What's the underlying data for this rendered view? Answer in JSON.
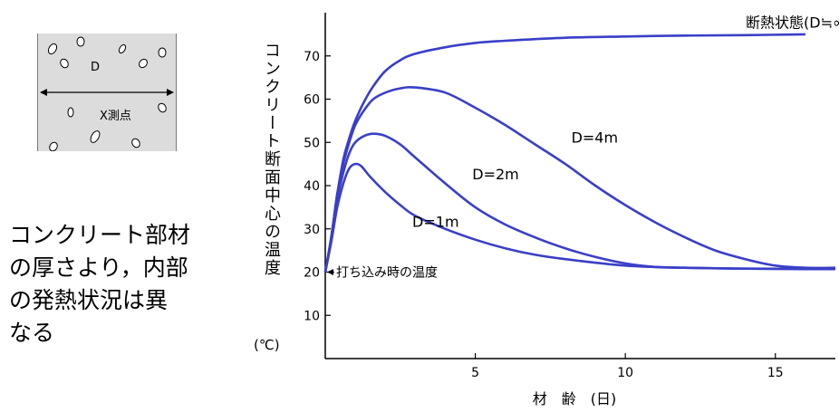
{
  "inset": {
    "diameter_label": "D",
    "point_label": "X測点"
  },
  "side_note": "コンクリート部材\nの厚さより，内部\nの発熱状況は異\nなる",
  "chart_data": {
    "type": "line",
    "xlabel": "材　齢　(日)",
    "ylabel": "コンクリート断面中心の温度",
    "yunit": "(℃)",
    "xlim": [
      0,
      17
    ],
    "ylim": [
      0,
      80
    ],
    "xticks": [
      5,
      10,
      15
    ],
    "yticks": [
      10,
      20,
      30,
      40,
      50,
      60,
      70
    ],
    "annotation": "打ち込み時の温度",
    "annotation_value": 20,
    "line_color": "#3a3fc8",
    "series": [
      {
        "name": "断熱状態(D≒∞)",
        "x": [
          0,
          0.2,
          0.4,
          0.6,
          0.8,
          1.0,
          1.3,
          1.6,
          2.0,
          2.5,
          3.0,
          4.0,
          5.0,
          6.0,
          8.0,
          10.0,
          12.0,
          14.0,
          16.0
        ],
        "y": [
          20,
          28,
          38,
          46,
          51,
          55,
          59.5,
          63,
          66.5,
          69,
          70.5,
          72,
          73,
          73.5,
          74.2,
          74.5,
          74.7,
          74.8,
          75
        ]
      },
      {
        "name": "D=4m",
        "x": [
          0,
          0.2,
          0.4,
          0.6,
          0.8,
          1.0,
          1.3,
          1.6,
          2.0,
          2.5,
          3.0,
          4.0,
          5.0,
          6.0,
          7.0,
          8.0,
          9.0,
          10.0,
          11.0,
          12.0,
          13.0,
          14.0,
          15.0,
          16.0,
          17.0
        ],
        "y": [
          20,
          28,
          38,
          45,
          50,
          54,
          57.5,
          60,
          61.5,
          62.5,
          62.7,
          61.5,
          58,
          54,
          49.5,
          45,
          40,
          35.5,
          31.5,
          28,
          25,
          23,
          21.5,
          21,
          21
        ]
      },
      {
        "name": "D=2m",
        "x": [
          0,
          0.2,
          0.4,
          0.6,
          0.8,
          1.0,
          1.3,
          1.6,
          2.0,
          2.5,
          3.0,
          4.0,
          5.0,
          6.0,
          7.0,
          8.0,
          9.0,
          10.0,
          11.0,
          12.0,
          14.0,
          16.0,
          17.0
        ],
        "y": [
          20,
          28,
          37,
          43,
          47.5,
          50,
          51.5,
          52,
          51.5,
          49.5,
          46.5,
          40.5,
          35,
          31,
          28,
          25.5,
          23.5,
          22,
          21.2,
          21,
          20.8,
          20.7,
          20.7
        ]
      },
      {
        "name": "D=1m",
        "x": [
          0,
          0.2,
          0.4,
          0.6,
          0.8,
          1.0,
          1.2,
          1.5,
          2.0,
          2.5,
          3.0,
          4.0,
          5.0,
          6.0,
          7.0,
          8.0,
          10.0,
          12.0,
          14.0,
          17.0
        ],
        "y": [
          20,
          27,
          35,
          40.5,
          44,
          45,
          44.5,
          42,
          38.5,
          35.5,
          33,
          30,
          27.5,
          25.5,
          24,
          23,
          21.5,
          21,
          20.8,
          20.8
        ]
      }
    ]
  }
}
